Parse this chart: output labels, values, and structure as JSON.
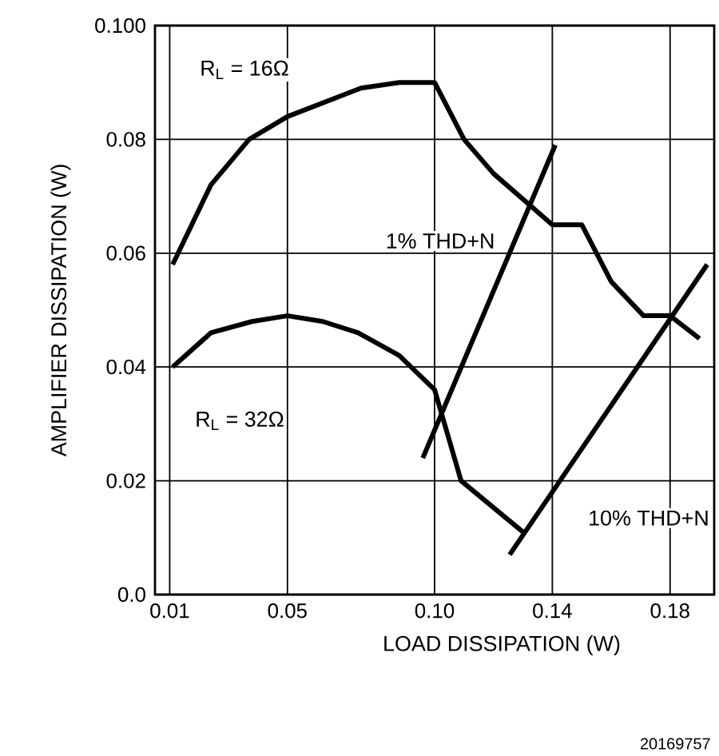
{
  "chart_data": {
    "type": "line",
    "xlabel": "LOAD DISSIPATION (W)",
    "ylabel": "AMPLIFIER DISSIPATION (W)",
    "xlim": [
      0.005,
      0.195
    ],
    "ylim": [
      0,
      0.1
    ],
    "xticks": [
      0.01,
      0.05,
      {
        "value": 0.1,
        "label": "0.10"
      },
      0.14,
      0.18
    ],
    "yticks": [
      {
        "value": 0,
        "label": "0.0"
      },
      0.02,
      0.04,
      0.06,
      0.08,
      {
        "value": 0.1,
        "label": "0.100"
      }
    ],
    "grid": true,
    "marker": "none",
    "line_style": "solid",
    "series": [
      {
        "name": "R$_{L}$ = 16Ω",
        "color": "#000000",
        "x": [
          0.011,
          0.024,
          0.037,
          0.05,
          0.075,
          0.088,
          0.1,
          0.11,
          0.12,
          0.14,
          0.15,
          0.16,
          0.171,
          0.18,
          0.19
        ],
        "values": [
          0.058,
          0.072,
          0.08,
          0.084,
          0.089,
          0.09,
          0.09,
          0.08,
          0.074,
          0.065,
          0.065,
          0.055,
          0.049,
          0.049,
          0.045
        ]
      },
      {
        "name": "R$_{L}$ = 32Ω",
        "color": "#000000",
        "x": [
          0.011,
          0.024,
          0.038,
          0.05,
          0.062,
          0.074,
          0.088,
          0.1,
          0.109,
          0.13
        ],
        "values": [
          0.04,
          0.046,
          0.048,
          0.049,
          0.048,
          0.046,
          0.042,
          0.036,
          0.02,
          0.011
        ]
      },
      {
        "name": "1% THD+N",
        "color": "#000000",
        "x": [
          0.096,
          0.141
        ],
        "values": [
          0.024,
          0.079
        ]
      },
      {
        "name": "10% THD+N",
        "color": "#000000",
        "x": [
          0.1255,
          0.1926
        ],
        "values": [
          0.007,
          0.058
        ]
      }
    ],
    "annotations": [
      "20169757"
    ]
  }
}
